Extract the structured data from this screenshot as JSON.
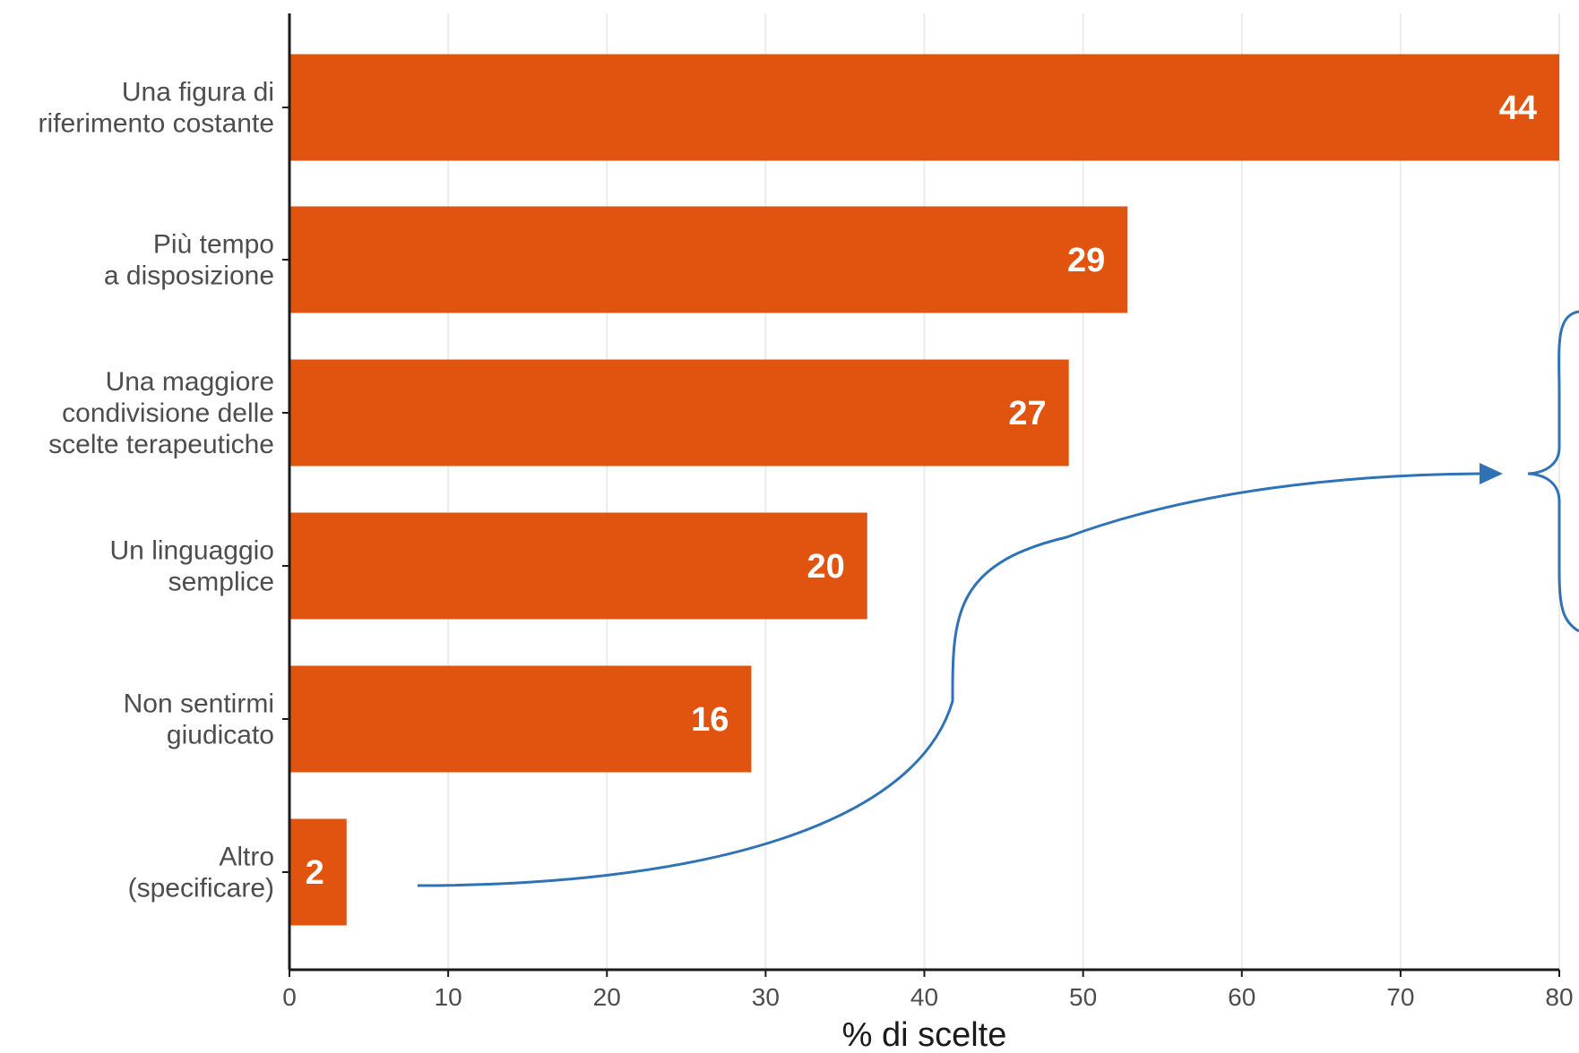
{
  "colors": {
    "bar": "#E1540F",
    "grid": "#EBEBEB",
    "axis": "#1A1A1A",
    "annotation": "#2F73B6"
  },
  "chart_data": {
    "type": "bar",
    "orientation": "horizontal",
    "categories": [
      [
        "Una figura di",
        "riferimento costante"
      ],
      [
        "Più tempo",
        "a disposizione"
      ],
      [
        "Una maggiore",
        "condivisione delle",
        "scelte terapeutiche"
      ],
      [
        "Un linguaggio",
        "semplice"
      ],
      [
        "Non sentirmi",
        "giudicato"
      ],
      [
        "Altro",
        "(specificare)"
      ]
    ],
    "series": [
      {
        "values": [
          80,
          52.8,
          49.1,
          36.4,
          29.1,
          3.6
        ],
        "data_labels": [
          "44",
          "29",
          "27",
          "20",
          "16",
          "2"
        ]
      }
    ],
    "title": "",
    "xlabel": "% di scelte",
    "ylabel": "",
    "xlim": [
      0,
      80
    ],
    "xticks": [
      0,
      10,
      20,
      30,
      40,
      50,
      60,
      70,
      80
    ],
    "grid": "vertical"
  },
  "annotation": {
    "type": "arrow-to-brace",
    "from_category": "Altro (specificare)"
  }
}
